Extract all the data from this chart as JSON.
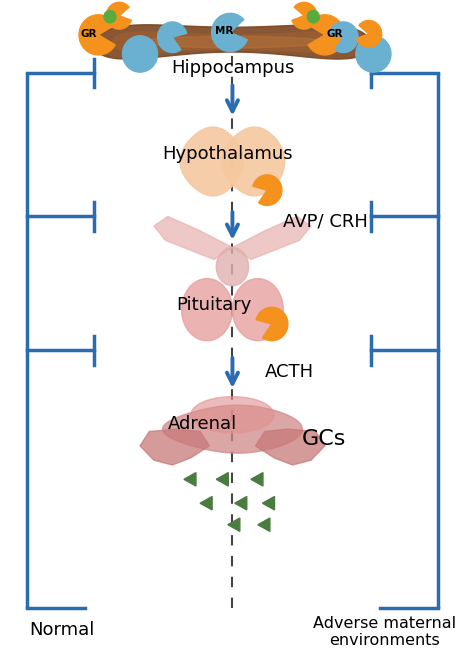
{
  "fig_width": 4.74,
  "fig_height": 6.53,
  "dpi": 100,
  "bg_color": "#ffffff",
  "blue_color": "#2b6cb0",
  "arrow_color": "#2b6cb0",
  "labels": {
    "hippocampus": "Hippocampus",
    "hypothalamus": "Hypothalamus",
    "avp_crh": "AVP/ CRH",
    "pituitary": "Pituitary",
    "acth": "ACTH",
    "adrenal": "Adrenal",
    "gcs": "GCs",
    "normal": "Normal",
    "adverse": "Adverse maternal\nenvironments"
  },
  "label_fontsize": 13,
  "green_color": "#4a7c3f",
  "orange_color": "#f5921e",
  "blue_receptor": "#6ab0d0",
  "brown_hippo": "#7b4520",
  "hippo_mid": "#9c5530",
  "peach_hypo": "#f5c8a0",
  "pink_pit": "#e8a0a0",
  "pink_pit2": "#d88888",
  "red_adrenal": "#c87878",
  "green_small": "#5aab3e",
  "lw": 2.5
}
